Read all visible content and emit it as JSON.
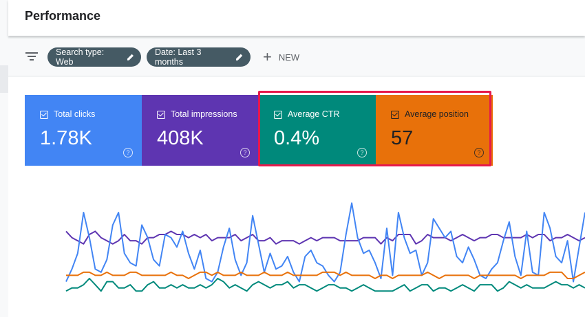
{
  "header": {
    "title": "Performance"
  },
  "filters": {
    "chips": [
      {
        "label": "Search type: Web"
      },
      {
        "label": "Date: Last 3 months"
      }
    ],
    "new_label": "NEW"
  },
  "metrics": [
    {
      "label": "Total clicks",
      "value": "1.78K",
      "color": "#4285f4"
    },
    {
      "label": "Total impressions",
      "value": "408K",
      "color": "#5e35b1"
    },
    {
      "label": "Average CTR",
      "value": "0.4%",
      "color": "#00897b"
    },
    {
      "label": "Average position",
      "value": "57",
      "color": "#e8710a"
    }
  ],
  "highlight_color": "#e6194b",
  "icons": [
    "filter-icon",
    "pencil-icon",
    "plus-icon",
    "checkbox-icon",
    "help-icon"
  ],
  "chart_data": {
    "type": "line",
    "series": [
      {
        "color": "#5e35b1",
        "values": [
          22,
          20,
          19,
          18,
          21,
          22,
          20,
          19,
          18,
          19,
          21,
          19,
          19,
          18,
          20,
          20,
          21,
          21,
          22,
          21,
          21,
          20,
          21,
          20,
          21,
          19,
          20,
          20,
          20,
          21,
          19,
          20,
          21,
          19,
          19,
          20,
          18,
          19,
          19,
          19,
          18,
          19,
          20,
          19,
          20,
          20,
          20,
          19,
          19,
          19,
          19,
          20,
          20,
          20,
          18,
          20,
          19,
          21,
          21,
          21,
          18,
          19,
          21,
          20,
          20,
          20,
          19,
          20,
          21,
          20,
          19,
          20,
          20,
          21,
          21,
          20,
          20,
          20,
          20,
          21,
          20,
          21,
          21,
          19,
          20,
          20,
          21,
          20,
          19,
          20
        ]
      },
      {
        "color": "#4285f4",
        "values": [
          6,
          10,
          15,
          28,
          20,
          10,
          9,
          13,
          24,
          28,
          15,
          12,
          11,
          24,
          20,
          13,
          11,
          21,
          20,
          17,
          22,
          15,
          10,
          16,
          7,
          6,
          9,
          17,
          23,
          13,
          8,
          12,
          27,
          18,
          9,
          15,
          10,
          11,
          14,
          9,
          6,
          14,
          16,
          12,
          11,
          8,
          6,
          9,
          21,
          31,
          20,
          15,
          16,
          12,
          7,
          23,
          8,
          28,
          20,
          15,
          16,
          8,
          12,
          26,
          23,
          20,
          22,
          14,
          12,
          17,
          13,
          8,
          7,
          10,
          12,
          19,
          25,
          14,
          8,
          22,
          9,
          8,
          28,
          23,
          14,
          12,
          19,
          6,
          17,
          28
        ]
      },
      {
        "color": "#e8710a",
        "values": [
          8,
          8,
          8,
          9,
          9,
          8,
          8,
          9,
          8,
          8,
          8,
          9,
          9,
          8,
          8,
          8,
          8,
          8,
          9,
          8,
          8,
          7,
          8,
          9,
          9,
          8,
          9,
          8,
          8,
          8,
          9,
          8,
          8,
          8,
          9,
          8,
          8,
          8,
          9,
          8,
          8,
          8,
          8,
          8,
          9,
          9,
          9,
          8,
          9,
          8,
          8,
          8,
          8,
          7,
          8,
          8,
          7,
          8,
          8,
          8,
          8,
          8,
          9,
          8,
          7,
          8,
          8,
          8,
          8,
          8,
          7,
          8,
          8,
          8,
          8,
          8,
          8,
          8,
          7,
          8,
          8,
          8,
          8,
          9,
          9,
          9,
          7,
          7,
          8,
          9
        ]
      },
      {
        "color": "#00897b",
        "values": [
          3,
          4,
          4,
          5,
          7,
          5,
          3,
          6,
          6,
          4,
          4,
          5,
          3,
          3,
          5,
          6,
          4,
          4,
          5,
          4,
          5,
          4,
          4,
          5,
          4,
          5,
          7,
          6,
          4,
          5,
          4,
          3,
          5,
          6,
          5,
          4,
          5,
          5,
          6,
          4,
          5,
          5,
          4,
          3,
          4,
          5,
          5,
          4,
          4,
          3,
          4,
          5,
          4,
          3,
          3,
          3,
          3,
          4,
          5,
          3,
          4,
          5,
          5,
          3,
          4,
          4,
          3,
          4,
          5,
          4,
          3,
          5,
          5,
          5,
          3,
          4,
          6,
          5,
          4,
          5,
          4,
          4,
          4,
          5,
          6,
          5,
          5,
          4,
          5,
          4
        ]
      }
    ],
    "ylim": [
      0,
      35
    ],
    "grid": false,
    "legend": "none"
  }
}
